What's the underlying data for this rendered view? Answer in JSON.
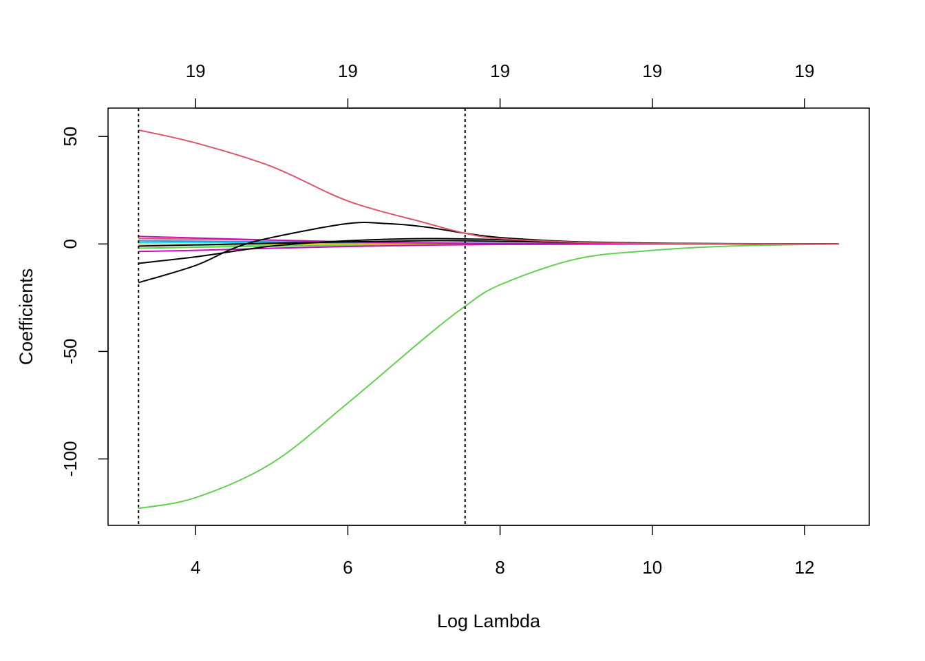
{
  "chart_data": {
    "type": "line",
    "title": "",
    "xlabel": "Log Lambda",
    "ylabel": "Coefficients",
    "xlim": [
      2.85,
      12.85
    ],
    "ylim": [
      -130.9,
      63.2
    ],
    "x_ticks": [
      4,
      6,
      8,
      10,
      12
    ],
    "y_ticks": [
      50,
      0,
      -50,
      -100
    ],
    "top_axis_ticks": [
      4,
      6,
      8,
      10,
      12
    ],
    "top_axis_labels": [
      "19",
      "19",
      "19",
      "19",
      "19"
    ],
    "vlines": [
      3.25,
      7.54
    ],
    "grid": false,
    "legend": "none",
    "series": [
      {
        "color": "#DF536B",
        "points": [
          [
            3.25,
            53
          ],
          [
            4,
            47
          ],
          [
            5,
            36
          ],
          [
            6,
            20
          ],
          [
            7,
            10
          ],
          [
            7.54,
            5
          ],
          [
            8,
            2.5
          ],
          [
            9,
            0.8
          ],
          [
            10,
            0.2
          ],
          [
            11,
            0.05
          ],
          [
            12.45,
            0
          ]
        ]
      },
      {
        "color": "#61D04F",
        "points": [
          [
            3.25,
            -123
          ],
          [
            4,
            -118
          ],
          [
            5,
            -102
          ],
          [
            6,
            -74
          ],
          [
            7,
            -44
          ],
          [
            7.54,
            -29
          ],
          [
            8,
            -19
          ],
          [
            9,
            -7
          ],
          [
            10,
            -3
          ],
          [
            11,
            -1
          ],
          [
            12.45,
            0
          ]
        ]
      },
      {
        "color": "#000000",
        "points": [
          [
            3.25,
            -18
          ],
          [
            4,
            -10
          ],
          [
            4.5,
            -2
          ],
          [
            5,
            3
          ],
          [
            6,
            9.5
          ],
          [
            6.5,
            9.5
          ],
          [
            7,
            8
          ],
          [
            7.54,
            5
          ],
          [
            8,
            3
          ],
          [
            9,
            1
          ],
          [
            10,
            0.3
          ],
          [
            11,
            0.1
          ],
          [
            12.45,
            0
          ]
        ]
      },
      {
        "color": "#000000",
        "points": [
          [
            3.25,
            -9
          ],
          [
            4,
            -6
          ],
          [
            5,
            -1
          ],
          [
            6,
            1.5
          ],
          [
            7,
            2.5
          ],
          [
            8,
            2
          ],
          [
            9,
            1
          ],
          [
            10,
            0.4
          ],
          [
            11,
            0.1
          ],
          [
            12.45,
            0
          ]
        ]
      },
      {
        "color": "#000000",
        "points": [
          [
            3.25,
            -1
          ],
          [
            5,
            0.3
          ],
          [
            7,
            1.5
          ],
          [
            8,
            1.2
          ],
          [
            10,
            0.3
          ],
          [
            12.45,
            0
          ]
        ]
      },
      {
        "color": "#CD0BBC",
        "points": [
          [
            3.25,
            3.5
          ],
          [
            4,
            2.8
          ],
          [
            5,
            1.8
          ],
          [
            6,
            1
          ],
          [
            7,
            0.5
          ],
          [
            8,
            0.2
          ],
          [
            10,
            0.05
          ],
          [
            12.45,
            0
          ]
        ]
      },
      {
        "color": "#CD0BBC",
        "points": [
          [
            3.25,
            -3.5
          ],
          [
            4,
            -3
          ],
          [
            5,
            -2
          ],
          [
            6,
            -1.2
          ],
          [
            7,
            -0.6
          ],
          [
            8,
            -0.2
          ],
          [
            10,
            0
          ],
          [
            12.45,
            0
          ]
        ]
      },
      {
        "color": "#DF536B",
        "points": [
          [
            3.25,
            2.5
          ],
          [
            5,
            1.8
          ],
          [
            6,
            1
          ],
          [
            7,
            0.5
          ],
          [
            8,
            0.2
          ],
          [
            10,
            0.05
          ],
          [
            12.45,
            0
          ]
        ]
      },
      {
        "color": "#2297E6",
        "points": [
          [
            3.25,
            1.5
          ],
          [
            5,
            1
          ],
          [
            7,
            0.5
          ],
          [
            9,
            0.1
          ],
          [
            12.45,
            0
          ]
        ]
      },
      {
        "color": "#28E2E5",
        "points": [
          [
            3.25,
            0.5
          ],
          [
            5,
            0.8
          ],
          [
            7,
            0.6
          ],
          [
            9,
            0.1
          ],
          [
            12.45,
            0
          ]
        ]
      },
      {
        "color": "#61D04F",
        "points": [
          [
            3.25,
            -2
          ],
          [
            5,
            -1
          ],
          [
            7,
            -0.4
          ],
          [
            9,
            -0.1
          ],
          [
            12.45,
            0
          ]
        ]
      },
      {
        "color": "#F5C710",
        "points": [
          [
            3.25,
            -0.5
          ],
          [
            6,
            -0.2
          ],
          [
            9,
            0
          ],
          [
            12.45,
            0
          ]
        ]
      },
      {
        "color": "#9E9E9E",
        "points": [
          [
            3.25,
            0.8
          ],
          [
            6,
            0.4
          ],
          [
            9,
            0.05
          ],
          [
            12.45,
            0
          ]
        ]
      },
      {
        "color": "#28E2E5",
        "points": [
          [
            3.25,
            -0.8
          ],
          [
            6,
            -0.3
          ],
          [
            9,
            0
          ],
          [
            12.45,
            0
          ]
        ]
      }
    ]
  }
}
